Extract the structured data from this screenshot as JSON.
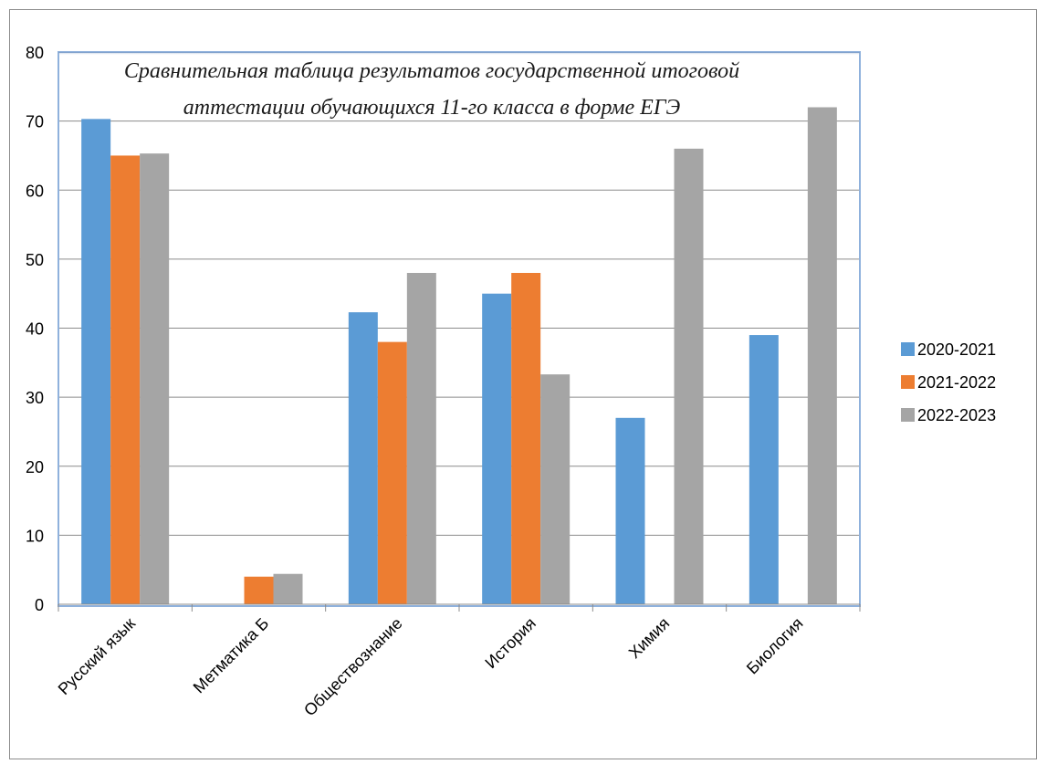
{
  "chart_data": {
    "type": "bar",
    "title": "Сравнительная таблица результатов государственной итоговой аттестации обучающихся 11-го класса в форме ЕГЭ",
    "title_lines": [
      "Сравнительная таблица результатов государственной итоговой",
      "аттестации обучающихся 11-го класса в форме ЕГЭ"
    ],
    "categories": [
      "Русский язык",
      "Метматика Б",
      "Обществознание",
      "История",
      "Химия",
      "Биология"
    ],
    "series": [
      {
        "name": "2020-2021",
        "color": "#5b9bd5",
        "values": [
          70.3,
          0,
          42.3,
          45,
          27,
          39
        ]
      },
      {
        "name": "2021-2022",
        "color": "#ed7d31",
        "values": [
          65,
          4,
          38,
          48,
          0,
          0
        ]
      },
      {
        "name": "2022-2023",
        "color": "#a5a5a5",
        "values": [
          65.3,
          4.4,
          48,
          33.3,
          66,
          72
        ]
      }
    ],
    "ylim": [
      0,
      80
    ],
    "yticks": [
      "0",
      "10",
      "20",
      "30",
      "40",
      "50",
      "60",
      "70",
      "80"
    ],
    "grid": true,
    "legend_position": "right",
    "xlabel": "",
    "ylabel": ""
  }
}
